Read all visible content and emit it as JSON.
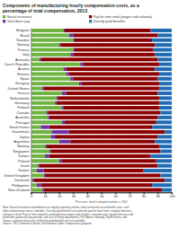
{
  "chart_data": {
    "type": "bar",
    "orientation": "horizontal",
    "stacked": true,
    "title": "Components of manufacturing hourly compensation costs, as a",
    "subtitle": "percentage of total compensation, 2013",
    "xlabel": "Percent, total compensation = 100",
    "categories": [
      "Belgium",
      "Brazil",
      "Sweden",
      "Norway",
      "France",
      "Italy",
      "Australia",
      "Czech Republic",
      "Austria",
      "Estonia",
      "Spain",
      "Hungary",
      "United States",
      "Greece",
      "Netherlands",
      "Germany",
      "Finland",
      "Canada",
      "Australia",
      "Portugal",
      "South Korea",
      "Guatemala",
      "Japan",
      "Argentina",
      "Norway",
      "Singapore",
      "Taiwan",
      "Poland",
      "Israel",
      "Taiwan",
      "United Kingdom",
      "Denmark",
      "Philippines",
      "New Zealand"
    ],
    "series": [
      {
        "name": "Social insurance",
        "color": "#6db33f",
        "values": [
          23,
          27,
          30,
          20,
          30,
          28,
          6,
          35,
          23,
          25,
          28,
          34,
          8,
          22,
          18,
          17,
          22,
          11,
          12,
          22,
          7,
          15,
          14,
          20,
          10,
          13,
          10,
          20,
          5,
          4,
          9,
          1,
          4,
          8
        ]
      },
      {
        "name": "Total direct pay",
        "color": "#7030a0",
        "values": [
          1,
          3,
          1,
          1,
          1,
          2,
          1,
          2,
          2,
          2,
          2,
          2,
          1,
          3,
          1,
          1,
          1,
          1,
          1,
          2,
          6,
          12,
          3,
          8,
          1,
          1,
          3,
          2,
          1,
          5,
          1,
          1,
          3,
          1
        ]
      },
      {
        "name": "Pay for time work (wages and salaries)",
        "color": "#8b0000",
        "values": [
          61,
          60,
          55,
          67,
          56,
          58,
          83,
          54,
          63,
          64,
          60,
          55,
          82,
          65,
          72,
          73,
          68,
          80,
          77,
          65,
          73,
          68,
          73,
          60,
          80,
          78,
          72,
          67,
          84,
          71,
          82,
          93,
          79,
          84
        ]
      },
      {
        "name": "Directly paid benefits",
        "color": "#1f6cb5",
        "values": [
          15,
          10,
          14,
          12,
          13,
          12,
          10,
          9,
          12,
          9,
          10,
          9,
          9,
          10,
          9,
          9,
          9,
          8,
          10,
          11,
          14,
          5,
          10,
          12,
          9,
          8,
          15,
          11,
          10,
          20,
          8,
          5,
          14,
          7
        ]
      }
    ],
    "xlim": [
      0,
      100
    ],
    "xticks": [
      0,
      10,
      20,
      30,
      40,
      50,
      60,
      70,
      80,
      90,
      100
    ],
    "grid": true,
    "legend": "top",
    "annotations": [
      "Note: Social insurance expenditures are legally required, private, and contractual social benefit costs, and",
      "labor-related taxes minus subsidies. Directly paid benefits are primarily pay for leave time, irregular bonuses,",
      "and pay in kind. Pay for time worked is primarily base wages and salaries, overtime pay, regular bonuses and",
      "premiums (paid each pay period), and cost of living adjustments. For Mexico, Norway, South Korea, and",
      "Taiwan, separate measures of directly-paid benefits are not available.",
      "Source: The Conference Board, International Labor Comparisons program"
    ]
  }
}
